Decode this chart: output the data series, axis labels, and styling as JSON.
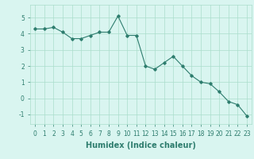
{
  "x": [
    0,
    1,
    2,
    3,
    4,
    5,
    6,
    7,
    8,
    9,
    10,
    11,
    12,
    13,
    14,
    15,
    16,
    17,
    18,
    19,
    20,
    21,
    22,
    23
  ],
  "y": [
    4.3,
    4.3,
    4.4,
    4.1,
    3.7,
    3.7,
    3.9,
    4.1,
    4.1,
    5.1,
    3.9,
    3.9,
    2.0,
    1.8,
    2.2,
    2.6,
    2.0,
    1.4,
    1.0,
    0.9,
    0.4,
    -0.2,
    -0.4,
    -1.1
  ],
  "line_color": "#2e7d6e",
  "marker": "D",
  "marker_size": 1.8,
  "line_width": 0.8,
  "bg_color": "#d9f5f0",
  "grid_color": "#aaddcc",
  "xlabel": "Humidex (Indice chaleur)",
  "xlabel_fontsize": 7,
  "tick_fontsize": 5.5,
  "ylim": [
    -1.6,
    5.8
  ],
  "yticks": [
    -1,
    0,
    1,
    2,
    3,
    4,
    5
  ],
  "xlim": [
    -0.5,
    23.5
  ],
  "xticks": [
    0,
    1,
    2,
    3,
    4,
    5,
    6,
    7,
    8,
    9,
    10,
    11,
    12,
    13,
    14,
    15,
    16,
    17,
    18,
    19,
    20,
    21,
    22,
    23
  ]
}
